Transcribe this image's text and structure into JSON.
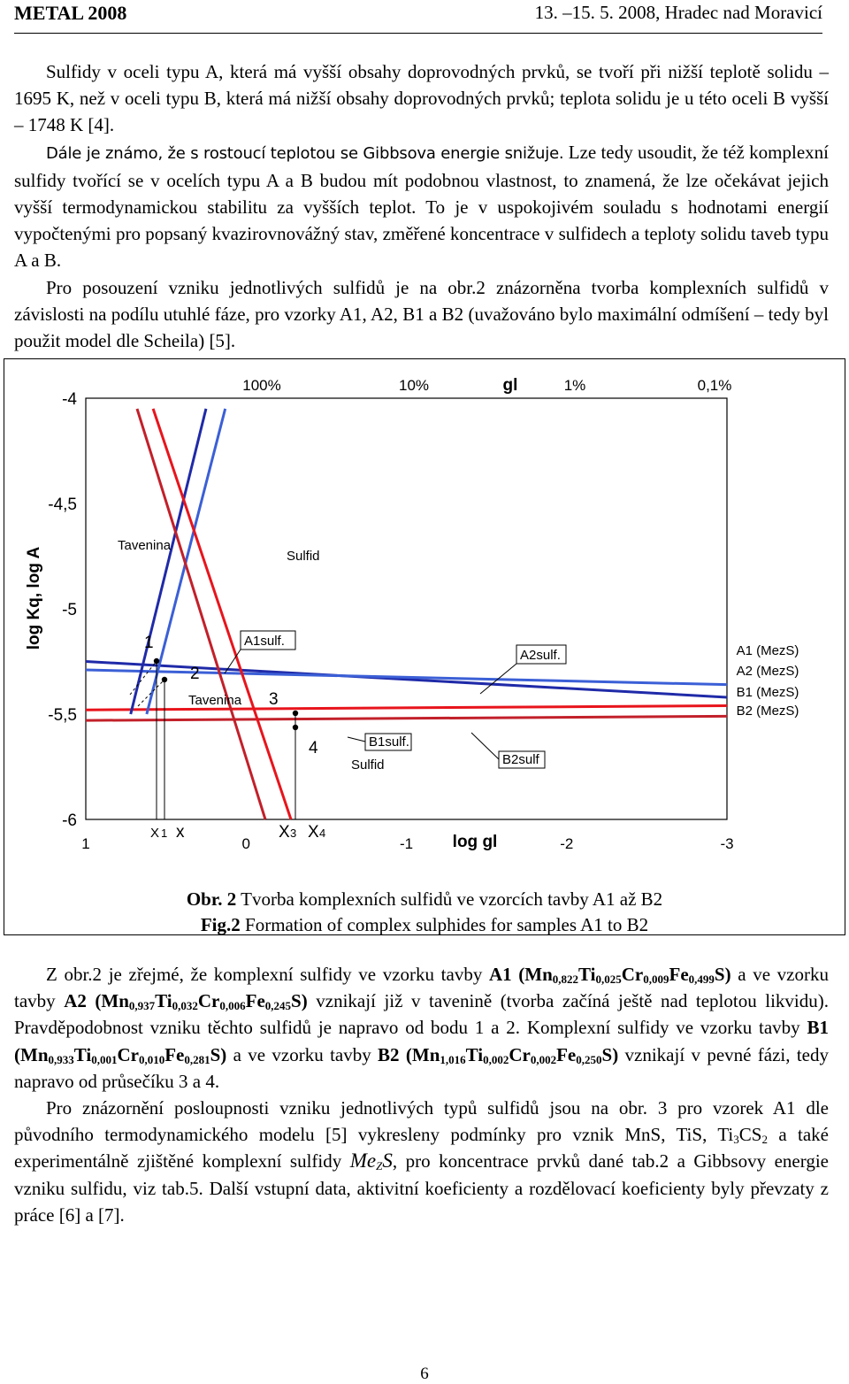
{
  "header": {
    "left": "METAL 2008",
    "right": "13. –15. 5. 2008, Hradec nad Moravicí"
  },
  "intro": {
    "p1": "Sulfidy v oceli typu A, která má vyšší obsahy doprovodných prvků, se tvoří při nižší teplotě solidu – 1695 K, než v oceli typu B, která má nižší obsahy doprovodných prvků; teplota solidu je u této oceli B vyšší – 1748 K [4].",
    "p2a": "Dále je známo, že s rostoucí teplotou se Gibbsova energie snižuje.",
    "p2b": " Lze tedy usoudit, že též komplexní sulfidy tvořící se v ocelích typu A a B budou mít podobnou vlastnost, to znamená, že lze očekávat jejich vyšší termodynamickou stabilitu za vyšších teplot.",
    "p2c": " To je v uspokojivém souladu s hodnotami energií vypočtenými pro popsaný kvazirovnovážný stav, změřené koncentrace v sulfidech a teploty solidu taveb typu A a B.",
    "p3": "Pro posouzení vzniku jednotlivých sulfidů je na obr.2  znázorněna tvorba komplexních sulfidů v závislosti na podílu utuhlé fáze, pro vzorky A1, A2, B1 a B2 (uvažováno bylo maximální odmíšení – tedy byl použit model dle Scheila) [5]."
  },
  "chart_data": {
    "type": "line",
    "title": "",
    "xlabel": "log gl",
    "ylabel": "log Kq, log A",
    "top_axis_label": "gl",
    "top_ticks": [
      "100%",
      "10%",
      "1%",
      "0,1%"
    ],
    "x_ticks": [
      "1",
      "0",
      "-1",
      "-2",
      "-3"
    ],
    "y_ticks": [
      "-4",
      "-4,5",
      "-5",
      "-5,5",
      "-6"
    ],
    "xlim": [
      1,
      -3
    ],
    "ylim": [
      -6,
      -4
    ],
    "colors": {
      "A1": "#1f2aa8",
      "A2": "#3b5fd6",
      "B1": "#e8141c",
      "B2": "#c2202a"
    },
    "series": [
      {
        "name": "A1 (MezS)",
        "x": [
          1,
          -3
        ],
        "y": [
          -5.25,
          -5.42
        ]
      },
      {
        "name": "A2 (MezS)",
        "x": [
          1,
          -3
        ],
        "y": [
          -5.29,
          -5.36
        ]
      },
      {
        "name": "B1 (MezS)",
        "x": [
          1,
          -3
        ],
        "y": [
          -5.48,
          -5.46
        ]
      },
      {
        "name": "B2 (MezS)",
        "x": [
          1,
          -3
        ],
        "y": [
          -5.53,
          -5.51
        ]
      },
      {
        "name": "",
        "x": [
          0.72,
          0.25
        ],
        "y": [
          -5.5,
          -4.05
        ]
      },
      {
        "name": "",
        "x": [
          0.62,
          0.13
        ],
        "y": [
          -5.5,
          -4.05
        ]
      },
      {
        "name": "",
        "x": [
          -0.28,
          0.58
        ],
        "y": [
          -6.0,
          -4.05
        ]
      },
      {
        "name": "",
        "x": [
          -0.12,
          0.68
        ],
        "y": [
          -6.0,
          -4.05
        ]
      }
    ],
    "annotations": {
      "tavenina_top": "Tavenina",
      "sulfid_top": "Sulfid",
      "n1": "1",
      "n2": "2",
      "tavenina_mid": "Tavenina",
      "n3": "3",
      "n4": "4",
      "sulfid_bottom": "Sulfid",
      "a1sulf": "A1sulf.",
      "a2sulf": "A2sulf.",
      "b1sulf": "B1sulf.",
      "b2sulf": "B2sulf",
      "x1_main": "X",
      "x1_sub": "1",
      "x_plain": "x",
      "x3_main": "X",
      "x3_sub": "3",
      "x4_main": "X",
      "x4_sub": "4"
    },
    "legend": [
      "A1 (MezS)",
      "A2 (MezS)",
      "B1 (MezS)",
      "B2 (MezS)"
    ],
    "legend_position": "right",
    "grid": false
  },
  "captions": {
    "obr_label": "Obr. 2",
    "obr_text": " Tvorba komplexních sulfidů ve vzorcích tavby A1 až B2",
    "fig_label": "Fig.2",
    "fig_text": "  Formation of complex sulphides for samples  A1 to B2"
  },
  "body": {
    "s1": "Z obr.2 je zřejmé, že komplexní sulfidy ve vzorku tavby ",
    "a1": "A1",
    "a1_formula": "(Mn0,822Ti0,025Cr0,009Fe0,499S)",
    "s2": " a ve vzorku tavby ",
    "a2": "A2",
    "a2_formula": "(Mn0,937Ti0,032Cr0,006Fe0,245S)",
    "s3": " vznikají již v tavenině (tvorba začíná ještě nad teplotou likvidu). Pravděpodobnost vzniku těchto sulfidů je napravo od bodu 1 a 2. Komplexní sulfidy ve vzorku tavby ",
    "b1": "B1",
    "b1_formula": "(Mn0,933Ti0,001Cr0,010Fe0,281S)",
    "s4": " a ve vzorku tavby ",
    "b2": "B2",
    "b2_formula": "(Mn1,016Ti0,002Cr0,002Fe0,250S)",
    "s5": " vznikají v pevné fázi, tedy napravo od průsečíku 3 a 4.",
    "p2a": "Pro znázornění posloupnosti vzniku jednotlivých typů sulfidů jsou na obr. 3 pro vzorek A1 dle původního termodynamického modelu [5] vykresleny podmínky pro vznik MnS, TiS, ",
    "ti3cs2": "Ti3CS2",
    "p2b": " a také experimentálně zjištěné komplexní sulfidy ",
    "mezs": "MeZS",
    "p2c": ", pro koncentrace prvků dané tab.2 a Gibbsovy energie vzniku sulfidu, viz tab.5. Další vstupní data, aktivitní koeficienty a rozdělovací koeficienty byly převzaty z práce [6] a [7]."
  },
  "page_number": "6"
}
